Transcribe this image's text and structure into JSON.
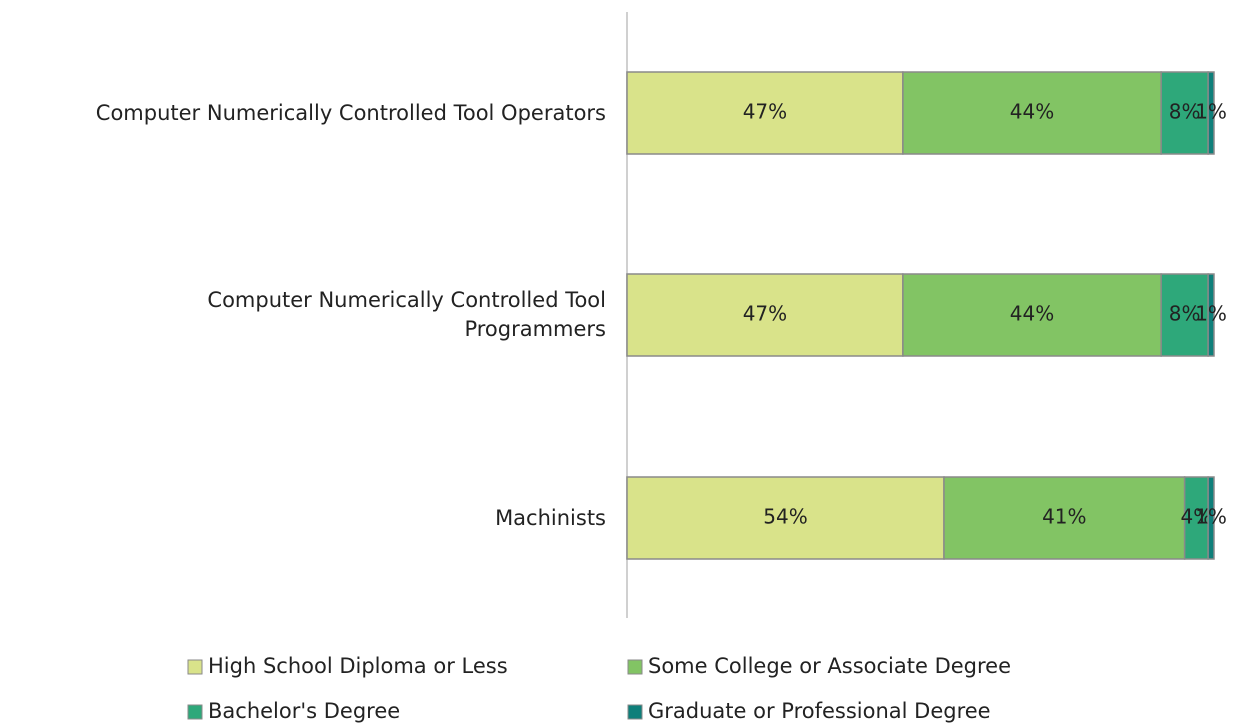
{
  "chart_data": {
    "type": "stacked-barh",
    "categories": [
      "Computer Numerically Controlled Tool Operators",
      "Computer Numerically Controlled Tool\nProgrammers",
      "Machinists"
    ],
    "xlim": [
      0,
      100
    ],
    "series": [
      {
        "name": "High School Diploma or Less",
        "color": "#d9e38a",
        "values": [
          47,
          47,
          54
        ],
        "value_labels": [
          "47%",
          "47%",
          "54%"
        ]
      },
      {
        "name": "Some College or Associate Degree",
        "color": "#82c464",
        "values": [
          44,
          44,
          41
        ],
        "value_labels": [
          "44%",
          "44%",
          "41%"
        ]
      },
      {
        "name": "Bachelor's Degree",
        "color": "#2ea87a",
        "values": [
          8,
          8,
          4
        ],
        "value_labels": [
          "8%",
          "8%",
          "4%"
        ]
      },
      {
        "name": "Graduate or Professional Degree",
        "color": "#0e7f7a",
        "values": [
          1,
          1,
          1
        ],
        "value_labels": [
          "1%",
          "1%",
          "1%"
        ]
      }
    ],
    "legend": "bottom"
  }
}
